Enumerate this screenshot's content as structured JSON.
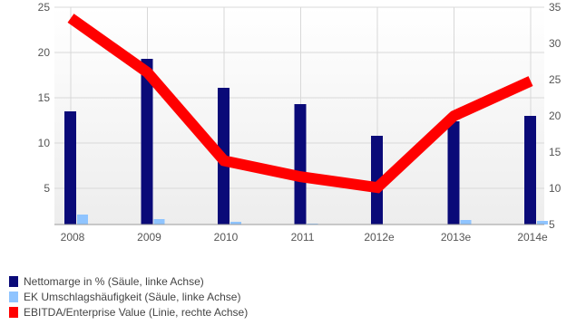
{
  "chart_data": {
    "type": "bar",
    "categories": [
      "2008",
      "2009",
      "2010",
      "2011",
      "2012e",
      "2013e",
      "2014e"
    ],
    "series": [
      {
        "name": "Nettomarge in % (Säule, linke Achse)",
        "type": "bar",
        "axis": "left",
        "color": "#0a0a78",
        "values": [
          13.5,
          19.3,
          16.1,
          14.3,
          10.8,
          12.4,
          13.0
        ]
      },
      {
        "name": "EK Umschlagshäufigkeit (Säule, linke Achse)",
        "type": "bar",
        "axis": "left",
        "color": "#8fc4ff",
        "values": [
          2.1,
          1.6,
          1.3,
          1.1,
          0.8,
          1.5,
          1.4
        ]
      },
      {
        "name": "EBITDA/Enterprise Value (Linie, rechte Achse)",
        "type": "line",
        "axis": "right",
        "color": "#ff0000",
        "values": [
          33.5,
          26.0,
          13.8,
          11.6,
          10.1,
          20.0,
          24.8
        ]
      }
    ],
    "left_axis": {
      "ticks": [
        "25",
        "20",
        "15",
        "10",
        "5"
      ],
      "ylim": [
        1,
        25
      ]
    },
    "right_axis": {
      "ticks": [
        "35",
        "30",
        "25",
        "20",
        "15",
        "10",
        "5"
      ],
      "ylim": [
        5,
        35
      ]
    },
    "grid": true,
    "legend_position": "bottom-left"
  }
}
